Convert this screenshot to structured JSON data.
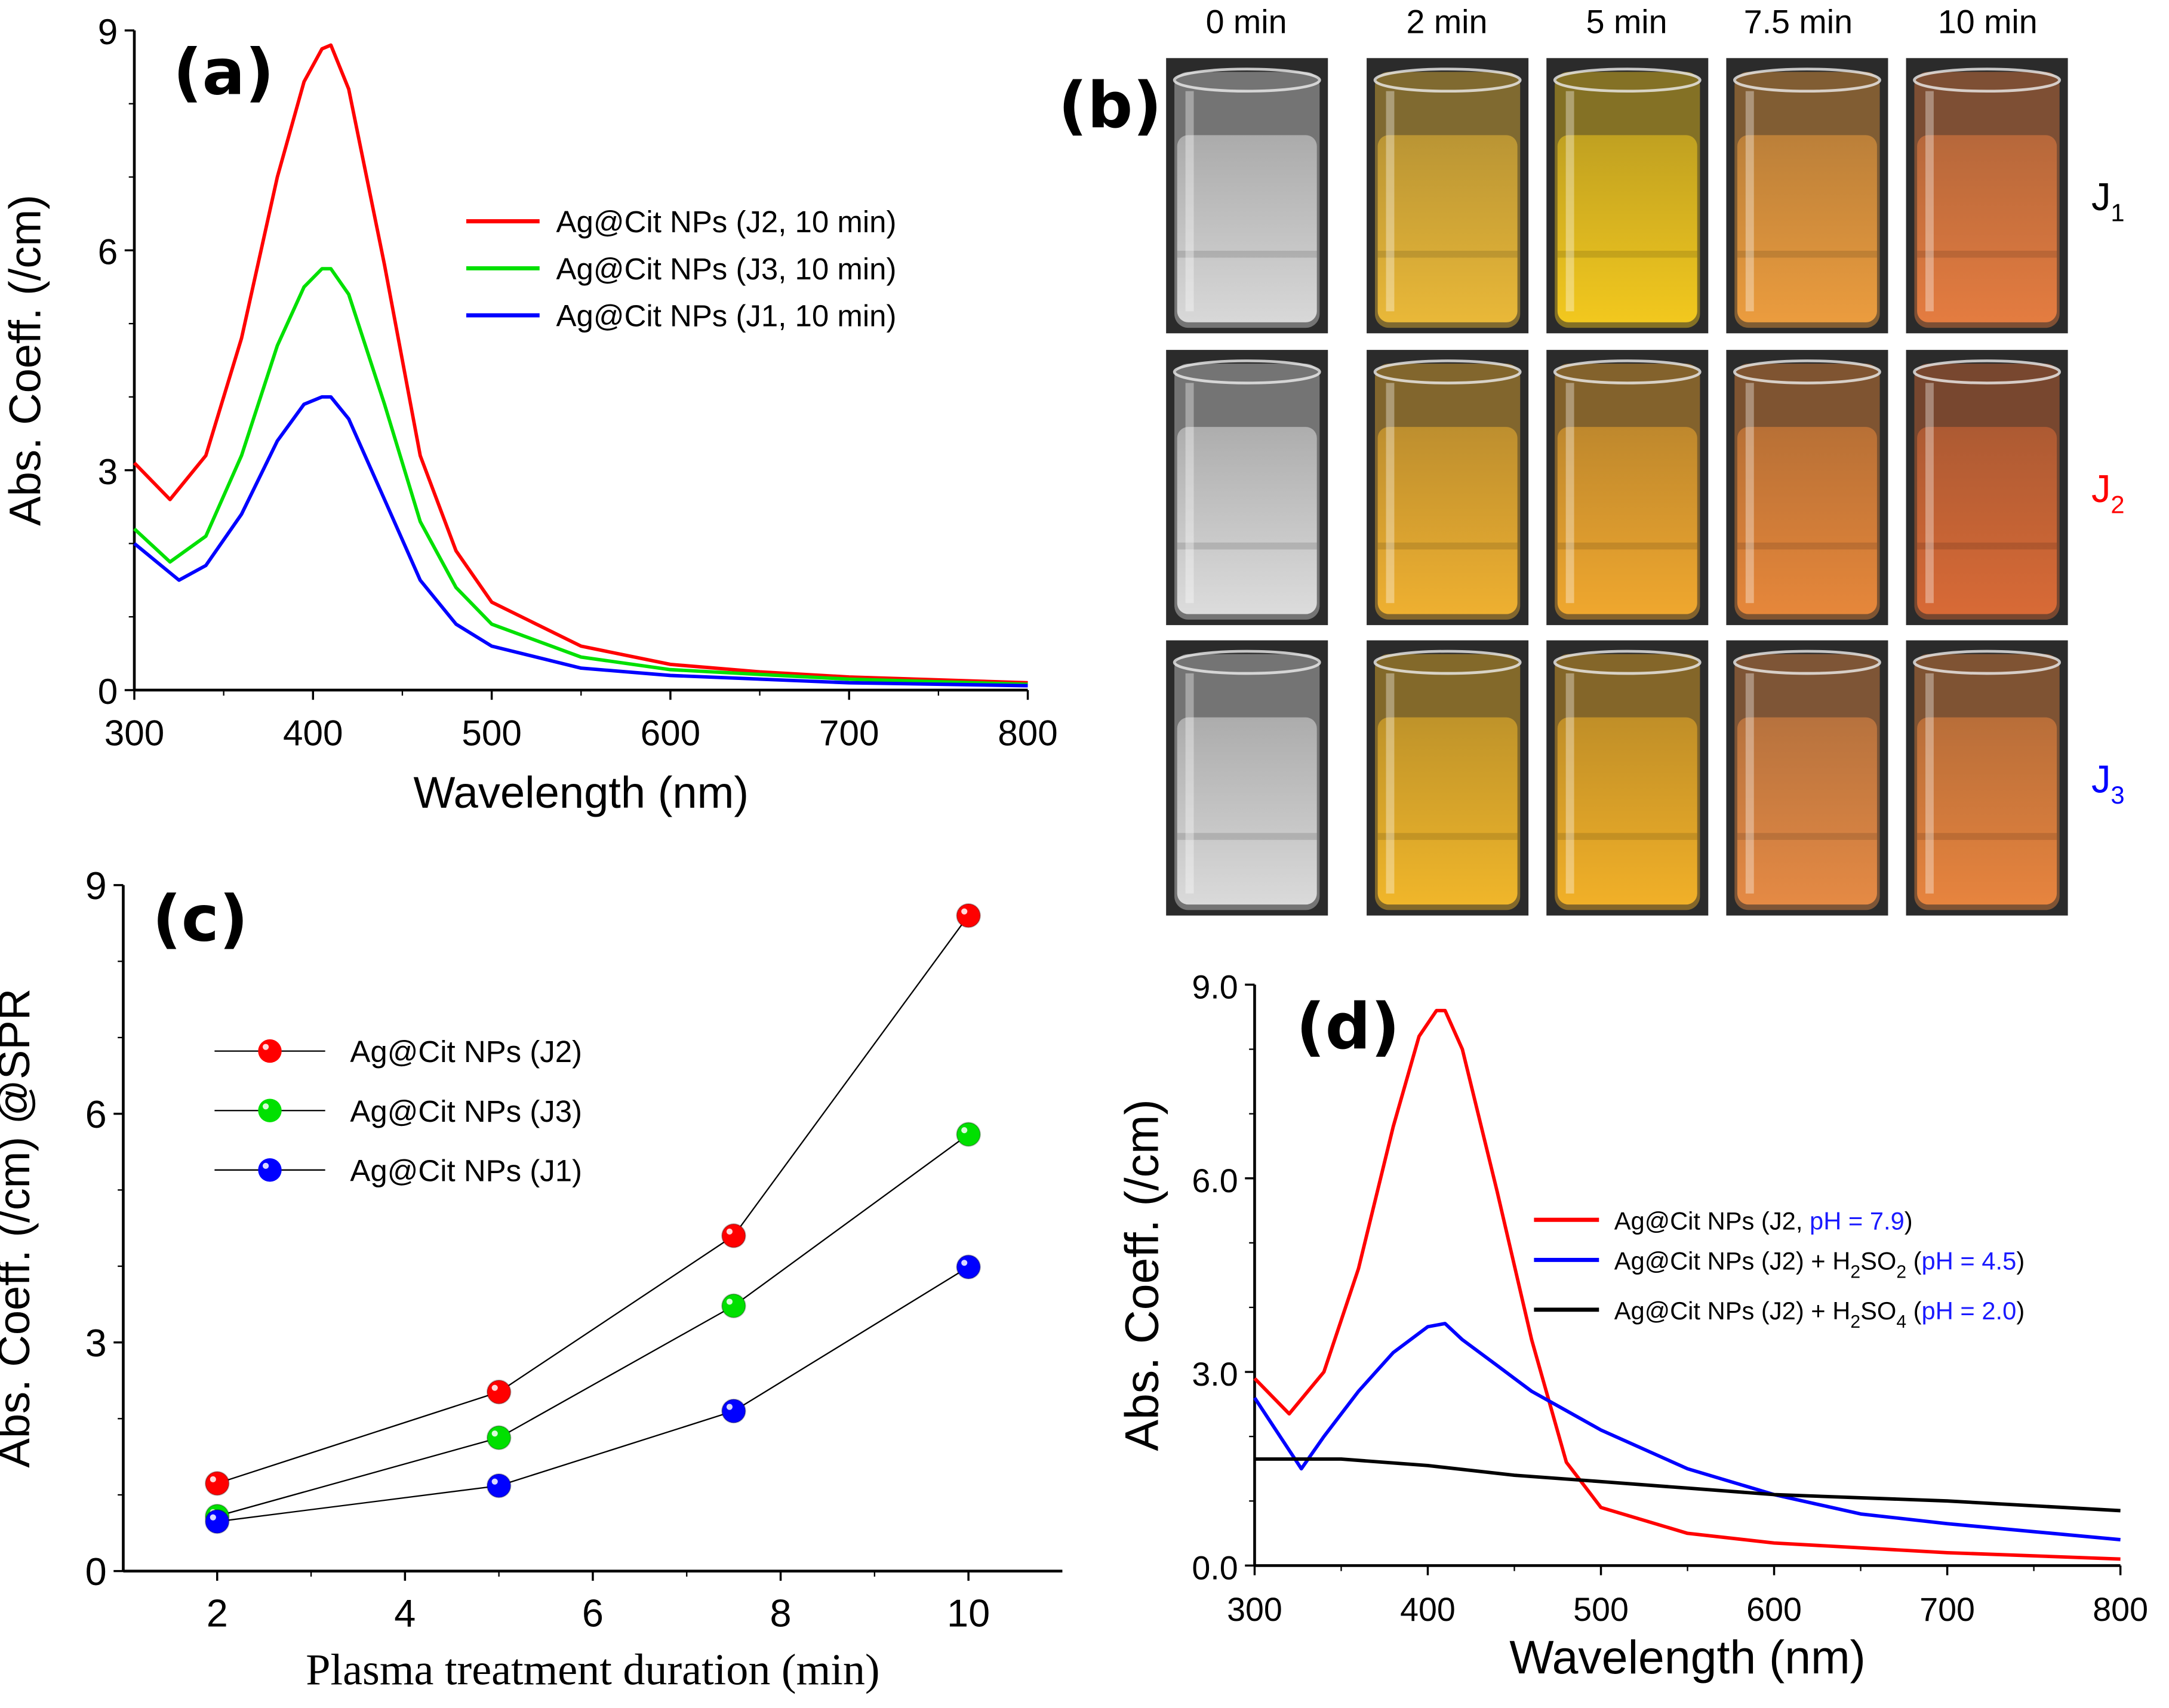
{
  "panel_labels": {
    "a": "(a)",
    "b": "(b)",
    "c": "(c)",
    "d": "(d)"
  },
  "colors": {
    "red": "#ff0000",
    "green": "#00e000",
    "blue": "#0000ff",
    "black": "#000000",
    "ph_blue": "#1a1aff"
  },
  "chart_data": [
    {
      "id": "a",
      "type": "line",
      "title": "",
      "xlabel": "Wavelength (nm)",
      "ylabel": "Abs. Coeff. (/cm)",
      "xlim": [
        300,
        800
      ],
      "ylim": [
        0,
        9
      ],
      "xticks": [
        "300",
        "400",
        "500",
        "600",
        "700",
        "800"
      ],
      "yticks": [
        "0",
        "3",
        "6",
        "9"
      ],
      "legend_position": "upper-right",
      "series": [
        {
          "name": "Ag@Cit NPs (J2, 10 min)",
          "color": "#ff0000",
          "x": [
            300,
            320,
            340,
            360,
            380,
            395,
            405,
            410,
            420,
            440,
            460,
            480,
            500,
            550,
            600,
            650,
            700,
            800
          ],
          "y": [
            3.1,
            2.6,
            3.2,
            4.8,
            7.0,
            8.3,
            8.75,
            8.8,
            8.2,
            5.8,
            3.2,
            1.9,
            1.2,
            0.6,
            0.35,
            0.25,
            0.18,
            0.1
          ]
        },
        {
          "name": "Ag@Cit NPs (J3, 10 min)",
          "color": "#00e000",
          "x": [
            300,
            320,
            340,
            360,
            380,
            395,
            405,
            410,
            420,
            440,
            460,
            480,
            500,
            550,
            600,
            700,
            800
          ],
          "y": [
            2.2,
            1.75,
            2.1,
            3.2,
            4.7,
            5.5,
            5.75,
            5.75,
            5.4,
            3.9,
            2.3,
            1.4,
            0.9,
            0.45,
            0.28,
            0.15,
            0.08
          ]
        },
        {
          "name": "Ag@Cit NPs (J1, 10 min)",
          "color": "#0000ff",
          "x": [
            300,
            325,
            340,
            360,
            380,
            395,
            405,
            410,
            420,
            440,
            460,
            480,
            500,
            550,
            600,
            700,
            800
          ],
          "y": [
            2.0,
            1.5,
            1.7,
            2.4,
            3.4,
            3.9,
            4.0,
            4.0,
            3.7,
            2.6,
            1.5,
            0.9,
            0.6,
            0.3,
            0.2,
            0.1,
            0.06
          ]
        }
      ]
    },
    {
      "id": "c",
      "type": "line",
      "title": "",
      "xlabel": "Plasma treatment duration (min)",
      "ylabel": "Abs. Coeff. (/cm) @SPR",
      "xlim": [
        1,
        11
      ],
      "ylim": [
        0,
        9
      ],
      "xticks": [
        "2",
        "4",
        "6",
        "8",
        "10"
      ],
      "yticks": [
        "0",
        "3",
        "6",
        "9"
      ],
      "legend_position": "upper-left",
      "series": [
        {
          "name": "Ag@Cit NPs (J2)",
          "color": "#ff0000",
          "x": [
            2,
            5,
            7.5,
            10
          ],
          "y": [
            1.15,
            2.35,
            4.4,
            8.6
          ]
        },
        {
          "name": "Ag@Cit NPs (J3)",
          "color": "#00e000",
          "x": [
            2,
            5,
            7.5,
            10
          ],
          "y": [
            0.72,
            1.75,
            3.48,
            5.73
          ]
        },
        {
          "name": "Ag@Cit NPs (J1)",
          "color": "#0000ff",
          "x": [
            2,
            5,
            7.5,
            10
          ],
          "y": [
            0.65,
            1.12,
            2.1,
            3.99
          ]
        }
      ]
    },
    {
      "id": "d",
      "type": "line",
      "title": "",
      "xlabel": "Wavelength (nm)",
      "ylabel": "Abs. Coeff. (/cm)",
      "xlim": [
        300,
        800
      ],
      "ylim": [
        0,
        9
      ],
      "xticks": [
        "300",
        "400",
        "500",
        "600",
        "700",
        "800"
      ],
      "yticks": [
        "0.0",
        "3.0",
        "6.0",
        "9.0"
      ],
      "legend_position": "right",
      "series": [
        {
          "name": "Ag@Cit NPs (J2, pH = 7.9)",
          "color": "#ff0000",
          "legend": [
            {
              "t": "Ag@Cit NPs (J2, "
            },
            {
              "t": "pH = 7.9",
              "c": "#1a1aff"
            },
            {
              "t": ")"
            }
          ],
          "x": [
            300,
            320,
            340,
            360,
            380,
            395,
            405,
            410,
            420,
            440,
            460,
            480,
            500,
            550,
            600,
            700,
            800
          ],
          "y": [
            2.9,
            2.35,
            3.0,
            4.6,
            6.8,
            8.2,
            8.6,
            8.6,
            8.0,
            5.8,
            3.5,
            1.6,
            0.9,
            0.5,
            0.35,
            0.2,
            0.1
          ]
        },
        {
          "name": "Ag@Cit NPs (J2) + H2SO2 (pH = 4.5)",
          "color": "#0000ff",
          "legend": [
            {
              "t": "Ag@Cit NPs (J2) + H"
            },
            {
              "t": "2",
              "sub": true
            },
            {
              "t": "SO"
            },
            {
              "t": "2",
              "sub": true
            },
            {
              "t": " ("
            },
            {
              "t": "pH = 4.5",
              "c": "#1a1aff"
            },
            {
              "t": ")"
            }
          ],
          "x": [
            300,
            327,
            340,
            360,
            380,
            400,
            410,
            420,
            440,
            460,
            480,
            500,
            550,
            600,
            650,
            700,
            800
          ],
          "y": [
            2.6,
            1.5,
            2.0,
            2.7,
            3.3,
            3.7,
            3.75,
            3.5,
            3.1,
            2.7,
            2.4,
            2.1,
            1.5,
            1.1,
            0.8,
            0.65,
            0.4
          ]
        },
        {
          "name": "Ag@Cit NPs (J2) + H2SO4 (pH = 2.0)",
          "color": "#000000",
          "legend": [
            {
              "t": "Ag@Cit NPs (J2) + H"
            },
            {
              "t": "2",
              "sub": true
            },
            {
              "t": "SO"
            },
            {
              "t": "4",
              "sub": true
            },
            {
              "t": " ("
            },
            {
              "t": "pH = 2.0",
              "c": "#1a1aff"
            },
            {
              "t": ")"
            }
          ],
          "x": [
            300,
            350,
            400,
            450,
            500,
            550,
            600,
            700,
            800
          ],
          "y": [
            1.65,
            1.65,
            1.55,
            1.4,
            1.3,
            1.2,
            1.1,
            1.0,
            0.85
          ]
        }
      ]
    }
  ],
  "photos": {
    "times": [
      "0 min",
      "2 min",
      "5 min",
      "7.5 min",
      "10 min"
    ],
    "rows": [
      {
        "label": "J",
        "sub": "1",
        "color": "#000000",
        "liquid": [
          "#d8d8d8",
          "#e9b838",
          "#f2c81e",
          "#eb9c3e",
          "#e47c40"
        ]
      },
      {
        "label": "J",
        "sub": "2",
        "color": "#ff0000",
        "liquid": [
          "#dcdcdc",
          "#eeb030",
          "#efa72e",
          "#e6873a",
          "#d86a36"
        ]
      },
      {
        "label": "J",
        "sub": "3",
        "color": "#0000ff",
        "liquid": [
          "#dadada",
          "#f0b62a",
          "#f1b028",
          "#e58a44",
          "#e7843e"
        ]
      }
    ]
  }
}
